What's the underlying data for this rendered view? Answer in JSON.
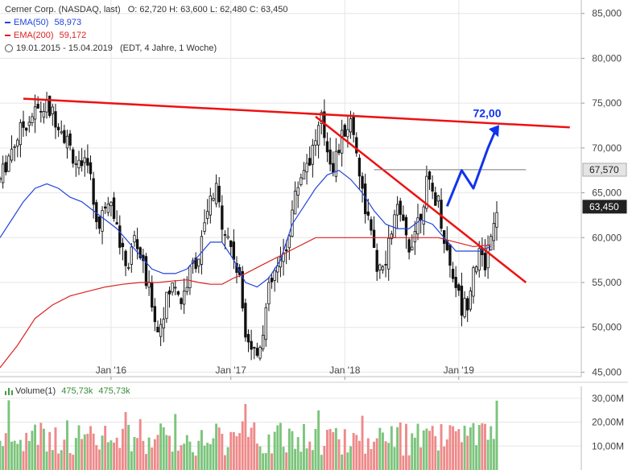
{
  "legend": {
    "instrument": "Cerner Corp. (NASDAQ, last)",
    "ohlc": "O: 62,720  H: 63,600  L: 62,480  C: 63,450",
    "ema50_label": "EMA(50)",
    "ema50_value": "58,973",
    "ema200_label": "EMA(200)",
    "ema200_value": "59,172",
    "range": "19.01.2015 - 15.04.2019",
    "settings": "(EDT, 4 Jahre, 1 Woche)"
  },
  "volume_legend": {
    "label": "Volume(1)",
    "value1": "475,73k",
    "value2": "475,73k"
  },
  "colors": {
    "candle": "#111111",
    "ema50": "#2244dd",
    "ema200": "#dd2222",
    "trendline": "#ee1111",
    "target_arrow": "#1133ee",
    "vol_up": "#7cc47c",
    "vol_down": "#ee8a8a",
    "grid": "#e6e6e6"
  },
  "chart_data": {
    "type": "candlestick",
    "y_ticks": [
      "85,000",
      "80,000",
      "75,000",
      "70,000",
      "65,000",
      "60,000",
      "55,000",
      "50,000",
      "45,000"
    ],
    "ylim": [
      44.5,
      86.5
    ],
    "x_ticks": [
      "Jan '16",
      "Jan '17",
      "Jan '18",
      "Jan '19"
    ],
    "price_badges": [
      {
        "label": "67,570",
        "value": 67.57,
        "style": "grey"
      },
      {
        "label": "63,450",
        "value": 63.45,
        "style": "dark"
      }
    ],
    "target_label": "72,00",
    "target_value": 72.0,
    "price_path": [
      [
        0,
        66.5
      ],
      [
        4,
        70
      ],
      [
        8,
        72.5
      ],
      [
        12,
        74
      ],
      [
        16,
        74.5
      ],
      [
        20,
        73
      ],
      [
        24,
        70
      ],
      [
        28,
        67
      ],
      [
        30,
        69
      ],
      [
        32,
        64
      ],
      [
        34,
        61
      ],
      [
        36,
        64
      ],
      [
        38,
        65
      ],
      [
        40,
        61
      ],
      [
        42,
        58
      ],
      [
        44,
        57
      ],
      [
        46,
        60
      ],
      [
        48,
        58
      ],
      [
        50,
        55
      ],
      [
        52,
        53
      ],
      [
        54,
        49.5
      ],
      [
        56,
        52
      ],
      [
        58,
        54
      ],
      [
        60,
        55
      ],
      [
        62,
        53
      ],
      [
        64,
        55
      ],
      [
        66,
        57
      ],
      [
        68,
        58
      ],
      [
        70,
        61
      ],
      [
        72,
        64
      ],
      [
        74,
        65
      ],
      [
        76,
        62
      ],
      [
        78,
        60
      ],
      [
        80,
        58
      ],
      [
        82,
        55
      ],
      [
        84,
        50
      ],
      [
        86,
        48
      ],
      [
        88,
        47
      ],
      [
        90,
        50
      ],
      [
        92,
        54
      ],
      [
        94,
        56
      ],
      [
        96,
        57
      ],
      [
        98,
        59
      ],
      [
        100,
        63
      ],
      [
        102,
        66
      ],
      [
        104,
        68
      ],
      [
        106,
        69
      ],
      [
        108,
        71
      ],
      [
        110,
        73
      ],
      [
        112,
        70
      ],
      [
        114,
        68
      ],
      [
        116,
        70
      ],
      [
        118,
        72
      ],
      [
        120,
        73
      ],
      [
        122,
        70
      ],
      [
        124,
        65
      ],
      [
        126,
        62
      ],
      [
        128,
        58
      ],
      [
        130,
        56
      ],
      [
        132,
        57
      ],
      [
        134,
        61
      ],
      [
        136,
        63
      ],
      [
        138,
        61
      ],
      [
        140,
        59
      ],
      [
        142,
        61
      ],
      [
        144,
        63
      ],
      [
        146,
        66
      ],
      [
        148,
        65
      ],
      [
        150,
        64
      ],
      [
        152,
        60
      ],
      [
        154,
        57
      ],
      [
        156,
        55
      ],
      [
        158,
        52
      ],
      [
        160,
        53
      ],
      [
        162,
        57
      ],
      [
        164,
        58
      ],
      [
        166,
        57
      ],
      [
        168,
        61
      ],
      [
        170,
        63.5
      ]
    ],
    "ema50_path": [
      [
        0,
        60
      ],
      [
        4,
        62
      ],
      [
        8,
        64
      ],
      [
        12,
        65.5
      ],
      [
        16,
        66
      ],
      [
        20,
        65.5
      ],
      [
        24,
        64.5
      ],
      [
        28,
        64
      ],
      [
        32,
        63
      ],
      [
        36,
        62
      ],
      [
        40,
        61
      ],
      [
        44,
        59.5
      ],
      [
        48,
        58
      ],
      [
        52,
        56.5
      ],
      [
        56,
        56
      ],
      [
        60,
        56
      ],
      [
        64,
        56.5
      ],
      [
        68,
        58
      ],
      [
        72,
        59.5
      ],
      [
        76,
        59.5
      ],
      [
        80,
        57.5
      ],
      [
        84,
        55
      ],
      [
        88,
        54.5
      ],
      [
        92,
        55.5
      ],
      [
        96,
        57.5
      ],
      [
        100,
        61.5
      ],
      [
        104,
        63.5
      ],
      [
        108,
        65.5
      ],
      [
        112,
        67
      ],
      [
        116,
        67.5
      ],
      [
        120,
        66.5
      ],
      [
        124,
        65
      ],
      [
        128,
        63
      ],
      [
        132,
        61.5
      ],
      [
        136,
        61
      ],
      [
        140,
        61
      ],
      [
        144,
        62
      ],
      [
        148,
        61.5
      ],
      [
        152,
        60
      ],
      [
        156,
        58.5
      ],
      [
        160,
        58.5
      ],
      [
        164,
        58.5
      ],
      [
        168,
        59
      ]
    ],
    "ema200_path": [
      [
        0,
        45.5
      ],
      [
        6,
        48
      ],
      [
        12,
        51
      ],
      [
        18,
        52.5
      ],
      [
        24,
        53.5
      ],
      [
        30,
        54
      ],
      [
        36,
        54.5
      ],
      [
        42,
        54.8
      ],
      [
        48,
        55
      ],
      [
        54,
        55
      ],
      [
        60,
        55.2
      ],
      [
        64,
        55.3
      ],
      [
        68,
        55
      ],
      [
        72,
        54.8
      ],
      [
        76,
        54.8
      ],
      [
        80,
        55.5
      ],
      [
        84,
        56
      ],
      [
        90,
        57
      ],
      [
        96,
        58
      ],
      [
        102,
        59
      ],
      [
        108,
        60
      ],
      [
        114,
        60
      ],
      [
        120,
        60
      ],
      [
        126,
        60
      ],
      [
        132,
        60
      ],
      [
        138,
        60
      ],
      [
        144,
        60
      ],
      [
        150,
        60
      ],
      [
        156,
        59.5
      ],
      [
        162,
        59
      ],
      [
        168,
        59.2
      ]
    ],
    "trendlines": [
      {
        "from": [
          8,
          75.5
        ],
        "to": [
          195,
          72.3
        ]
      },
      {
        "from": [
          108,
          73.5
        ],
        "to": [
          180,
          55
        ]
      },
      {
        "from": [
          128,
          67.57
        ],
        "to": [
          180,
          67.57
        ]
      }
    ],
    "target_path": [
      [
        153,
        63.5
      ],
      [
        158,
        67.5
      ],
      [
        162,
        65.5
      ],
      [
        167,
        70
      ],
      [
        170,
        72.3
      ]
    ],
    "volume_y_ticks": [
      "30,00M",
      "20,00M",
      "10,00M"
    ],
    "volume_ylim": [
      0,
      35
    ]
  }
}
